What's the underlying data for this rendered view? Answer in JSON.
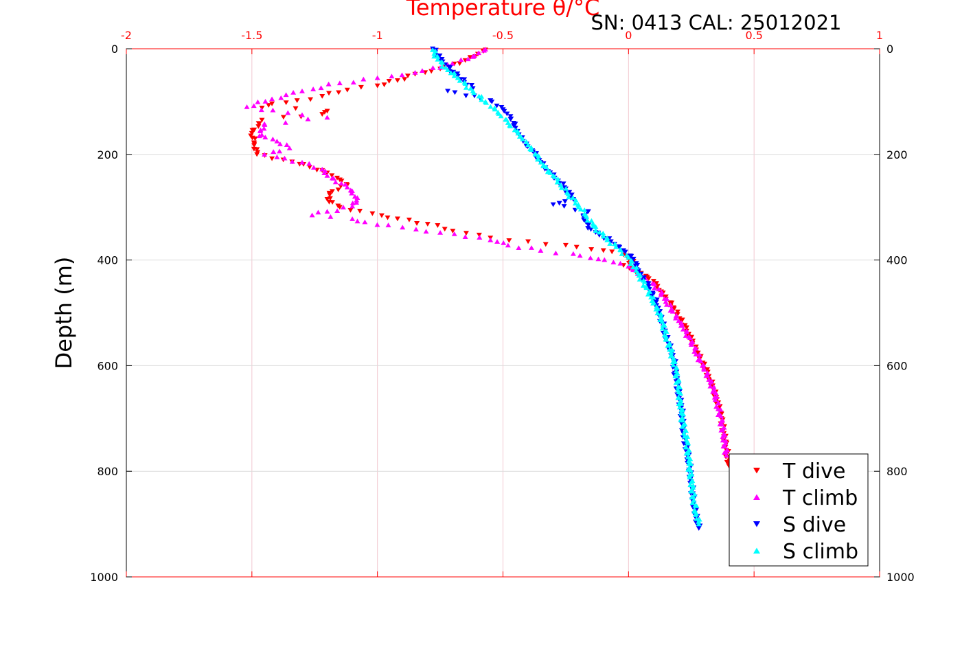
{
  "chart_data": {
    "type": "scatter",
    "xlabel": "Temperature θ/°C",
    "ylabel": "Depth (m)",
    "annotation": "SN: 0413  CAL: 25012021",
    "xlim": [
      -2,
      1
    ],
    "ylim": [
      0,
      1000
    ],
    "y_reversed": true,
    "x_axis_position": "top",
    "y_axis_ticks_both_sides": true,
    "x_ticks": [
      -2,
      -1.5,
      -1,
      -0.5,
      0,
      0.5,
      1
    ],
    "x_tick_labels": [
      "-2",
      "-1.5",
      "-1",
      "-0.5",
      "0",
      "0.5",
      "1"
    ],
    "y_ticks": [
      0,
      200,
      400,
      600,
      800,
      1000
    ],
    "y_tick_labels": [
      "0",
      "200",
      "400",
      "600",
      "800",
      "1000"
    ],
    "grid": true,
    "legend_position": "bottom-right",
    "series": [
      {
        "name": "T dive",
        "color": "#ff0000",
        "marker": "triangle-down",
        "points": [
          [
            -0.57,
            2
          ],
          [
            -0.6,
            10
          ],
          [
            -0.65,
            22
          ],
          [
            -0.75,
            38
          ],
          [
            -0.85,
            48
          ],
          [
            -0.92,
            60
          ],
          [
            -1.0,
            70
          ],
          [
            -1.12,
            78
          ],
          [
            -1.22,
            90
          ],
          [
            -1.32,
            98
          ],
          [
            -1.42,
            104
          ],
          [
            -1.46,
            112
          ],
          [
            -1.2,
            118
          ],
          [
            -1.22,
            124
          ],
          [
            -1.46,
            135
          ],
          [
            -1.5,
            160
          ],
          [
            -1.49,
            180
          ],
          [
            -1.48,
            200
          ],
          [
            -1.42,
            208
          ],
          [
            -1.34,
            214
          ],
          [
            -1.27,
            224
          ],
          [
            -1.2,
            235
          ],
          [
            -1.15,
            248
          ],
          [
            -1.12,
            258
          ],
          [
            -1.18,
            270
          ],
          [
            -1.2,
            285
          ],
          [
            -1.15,
            300
          ],
          [
            -1.02,
            312
          ],
          [
            -0.92,
            322
          ],
          [
            -0.8,
            332
          ],
          [
            -0.7,
            345
          ],
          [
            -0.55,
            358
          ],
          [
            -0.4,
            365
          ],
          [
            -0.25,
            372
          ],
          [
            -0.1,
            382
          ],
          [
            -0.02,
            390
          ],
          [
            0.02,
            402
          ],
          [
            -0.02,
            410
          ],
          [
            0.05,
            425
          ],
          [
            0.1,
            440
          ],
          [
            0.13,
            460
          ],
          [
            0.18,
            490
          ],
          [
            0.24,
            540
          ],
          [
            0.27,
            570
          ],
          [
            0.32,
            620
          ],
          [
            0.35,
            660
          ],
          [
            0.37,
            700
          ],
          [
            0.39,
            760
          ],
          [
            0.4,
            790
          ]
        ]
      },
      {
        "name": "T climb",
        "color": "#ff00ff",
        "marker": "triangle-up",
        "points": [
          [
            -0.57,
            1
          ],
          [
            -0.62,
            15
          ],
          [
            -0.72,
            30
          ],
          [
            -0.85,
            45
          ],
          [
            -1.0,
            55
          ],
          [
            -1.15,
            65
          ],
          [
            -1.3,
            80
          ],
          [
            -1.42,
            95
          ],
          [
            -1.52,
            110
          ],
          [
            -1.3,
            125
          ],
          [
            -1.2,
            130
          ],
          [
            -1.45,
            142
          ],
          [
            -1.47,
            165
          ],
          [
            -1.4,
            175
          ],
          [
            -1.35,
            188
          ],
          [
            -1.45,
            200
          ],
          [
            -1.4,
            205
          ],
          [
            -1.3,
            215
          ],
          [
            -1.22,
            228
          ],
          [
            -1.2,
            240
          ],
          [
            -1.12,
            262
          ],
          [
            -1.08,
            282
          ],
          [
            -1.1,
            298
          ],
          [
            -1.2,
            308
          ],
          [
            -1.26,
            315
          ],
          [
            -1.1,
            322
          ],
          [
            -1.05,
            328
          ],
          [
            -0.9,
            338
          ],
          [
            -0.75,
            348
          ],
          [
            -0.65,
            356
          ],
          [
            -0.55,
            362
          ],
          [
            -0.48,
            372
          ],
          [
            -0.35,
            382
          ],
          [
            -0.22,
            388
          ],
          [
            -0.12,
            398
          ],
          [
            -0.06,
            404
          ],
          [
            0.0,
            412
          ],
          [
            0.05,
            428
          ],
          [
            0.12,
            455
          ],
          [
            0.2,
            515
          ],
          [
            0.24,
            545
          ],
          [
            0.3,
            605
          ],
          [
            0.34,
            645
          ],
          [
            0.37,
            705
          ],
          [
            0.39,
            770
          ]
        ]
      },
      {
        "name": "S dive",
        "color": "#0000ff",
        "marker": "triangle-down",
        "points": [
          [
            -0.78,
            0
          ],
          [
            -0.73,
            30
          ],
          [
            -0.68,
            52
          ],
          [
            -0.62,
            75
          ],
          [
            -0.72,
            80
          ],
          [
            -0.55,
            98
          ],
          [
            -0.5,
            115
          ],
          [
            -0.47,
            128
          ],
          [
            -0.45,
            150
          ],
          [
            -0.42,
            175
          ],
          [
            -0.38,
            195
          ],
          [
            -0.35,
            215
          ],
          [
            -0.32,
            232
          ],
          [
            -0.28,
            250
          ],
          [
            -0.25,
            265
          ],
          [
            -0.22,
            285
          ],
          [
            -0.3,
            295
          ],
          [
            -0.16,
            308
          ],
          [
            -0.18,
            318
          ],
          [
            -0.17,
            328
          ],
          [
            -0.15,
            342
          ],
          [
            -0.07,
            365
          ],
          [
            -0.02,
            382
          ],
          [
            0.02,
            398
          ],
          [
            0.04,
            420
          ],
          [
            0.08,
            450
          ],
          [
            0.11,
            480
          ],
          [
            0.14,
            530
          ],
          [
            0.16,
            560
          ],
          [
            0.18,
            590
          ],
          [
            0.19,
            630
          ],
          [
            0.21,
            680
          ],
          [
            0.22,
            730
          ],
          [
            0.24,
            780
          ],
          [
            0.25,
            820
          ],
          [
            0.26,
            860
          ],
          [
            0.27,
            890
          ],
          [
            0.28,
            908
          ]
        ]
      },
      {
        "name": "S climb",
        "color": "#00ffff",
        "marker": "triangle-up",
        "points": [
          [
            -0.78,
            2
          ],
          [
            -0.76,
            20
          ],
          [
            -0.72,
            40
          ],
          [
            -0.68,
            55
          ],
          [
            -0.62,
            80
          ],
          [
            -0.57,
            100
          ],
          [
            -0.52,
            120
          ],
          [
            -0.48,
            140
          ],
          [
            -0.44,
            160
          ],
          [
            -0.4,
            182
          ],
          [
            -0.37,
            200
          ],
          [
            -0.34,
            222
          ],
          [
            -0.3,
            240
          ],
          [
            -0.27,
            258
          ],
          [
            -0.24,
            275
          ],
          [
            -0.2,
            295
          ],
          [
            -0.17,
            315
          ],
          [
            -0.14,
            335
          ],
          [
            -0.1,
            355
          ],
          [
            -0.05,
            375
          ],
          [
            0.0,
            395
          ],
          [
            0.03,
            420
          ],
          [
            0.07,
            450
          ],
          [
            0.1,
            480
          ],
          [
            0.13,
            510
          ],
          [
            0.15,
            545
          ],
          [
            0.17,
            575
          ],
          [
            0.19,
            610
          ],
          [
            0.2,
            650
          ],
          [
            0.21,
            690
          ],
          [
            0.23,
            740
          ],
          [
            0.24,
            780
          ],
          [
            0.25,
            820
          ],
          [
            0.26,
            855
          ],
          [
            0.27,
            880
          ],
          [
            0.28,
            900
          ]
        ]
      }
    ]
  }
}
